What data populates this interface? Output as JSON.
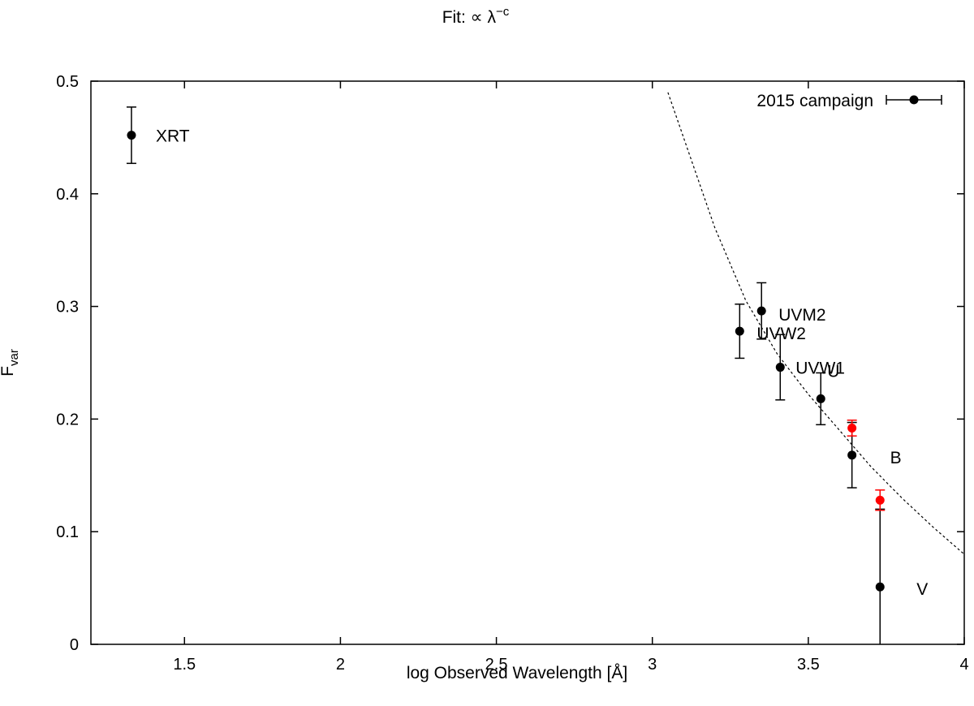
{
  "chart_data": {
    "type": "scatter",
    "title": "Fit: ∝ λ",
    "title_superscript": "−c",
    "xlabel": "log Observed Wavelength [Å]",
    "ylabel_main": "F",
    "ylabel_sub": "var",
    "xlim": [
      1.2,
      4.0
    ],
    "ylim": [
      0,
      0.5
    ],
    "xticks": [
      1.5,
      2,
      2.5,
      3,
      3.5,
      4
    ],
    "xtick_labels": [
      "1.5",
      "2",
      "2.5",
      "3",
      "3.5",
      "4"
    ],
    "yticks": [
      0,
      0.1,
      0.2,
      0.3,
      0.4,
      0.5
    ],
    "ytick_labels": [
      "0",
      "0.1",
      "0.2",
      "0.3",
      "0.4",
      "0.5"
    ],
    "grid": false,
    "legend": {
      "placement": "top-right",
      "label": "2015 campaign"
    },
    "colors": {
      "main": "#000000",
      "secondary": "#ff0000",
      "fit": "#000000"
    },
    "series": [
      {
        "name": "2015 campaign",
        "color": "#000000",
        "points": [
          {
            "label": "XRT",
            "x": 1.33,
            "y": 0.452,
            "err": 0.025
          },
          {
            "label": "UVW2",
            "x": 3.28,
            "y": 0.278,
            "err": 0.024
          },
          {
            "label": "UVM2",
            "x": 3.35,
            "y": 0.296,
            "err": 0.025
          },
          {
            "label": "UVW1",
            "x": 3.41,
            "y": 0.246,
            "err": 0.029
          },
          {
            "label": "U",
            "x": 3.54,
            "y": 0.218,
            "err": 0.023
          },
          {
            "label": "B",
            "x": 3.64,
            "y": 0.168,
            "err": 0.029
          },
          {
            "label": "V",
            "x": 3.73,
            "y": 0.051,
            "err": 0.069
          }
        ]
      },
      {
        "color": "#ff0000",
        "points": [
          {
            "x": 3.64,
            "y": 0.192,
            "err": 0.007
          },
          {
            "x": 3.73,
            "y": 0.128,
            "err": 0.009
          }
        ]
      }
    ],
    "fit": {
      "type": "power-law",
      "points": [
        {
          "x": 3.05,
          "y": 0.49
        },
        {
          "x": 3.2,
          "y": 0.37
        },
        {
          "x": 3.3,
          "y": 0.305
        },
        {
          "x": 3.4,
          "y": 0.258
        },
        {
          "x": 3.5,
          "y": 0.222
        },
        {
          "x": 3.6,
          "y": 0.19
        },
        {
          "x": 3.7,
          "y": 0.158
        },
        {
          "x": 3.8,
          "y": 0.13
        },
        {
          "x": 3.9,
          "y": 0.104
        },
        {
          "x": 4.0,
          "y": 0.08
        }
      ]
    }
  }
}
